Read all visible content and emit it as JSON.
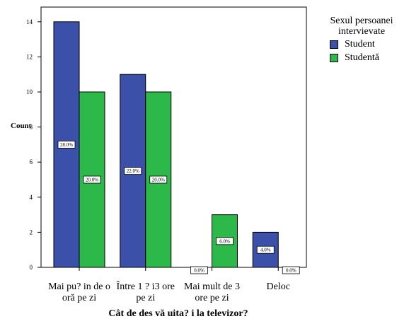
{
  "chart_data": {
    "type": "bar",
    "xlabel": "Cât de des vă uita? i la televizor?",
    "ylabel": "Count",
    "ylim": [
      0,
      15
    ],
    "yticks": [
      0,
      2,
      4,
      6,
      8,
      10,
      12,
      14
    ],
    "grid": false,
    "legend_position": "right-top",
    "legend_title": [
      "Sexul persoanei",
      "intervievate"
    ],
    "categories": [
      [
        "Mai pu? in de o",
        "oră pe zi"
      ],
      [
        "Între 1 ? i3 ore",
        "pe zi"
      ],
      [
        "Mai mult de 3",
        "ore pe zi"
      ],
      [
        "Deloc"
      ]
    ],
    "series": [
      {
        "name": "Student",
        "color": "#3b50a8",
        "values": [
          14,
          11,
          0,
          2
        ],
        "labels": [
          "28.0%",
          "22.0%",
          "0.0%",
          "4.0%"
        ]
      },
      {
        "name": "Studentă",
        "color": "#2db84a",
        "values": [
          10,
          10,
          3,
          0
        ],
        "labels": [
          "20.0%",
          "20.0%",
          "6.0%",
          "0.0%"
        ]
      }
    ]
  }
}
